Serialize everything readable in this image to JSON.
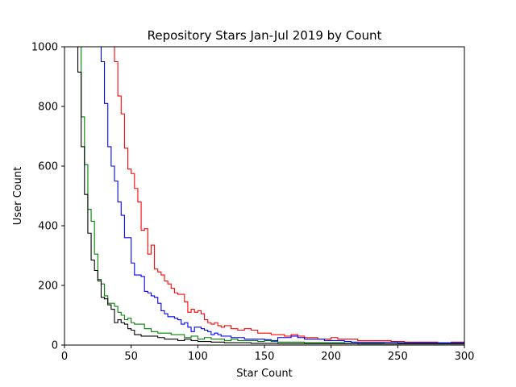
{
  "chart_data": {
    "type": "line",
    "title": "Repository Stars Jan-Jul 2019 by Count",
    "xlabel": "Star Count",
    "ylabel": "User Count",
    "xlim": [
      0,
      300
    ],
    "ylim": [
      0,
      1000
    ],
    "xticks": [
      0,
      50,
      100,
      150,
      200,
      250,
      300
    ],
    "yticks": [
      0,
      200,
      400,
      600,
      800,
      1000
    ],
    "grid": false,
    "legend": false,
    "step": "post",
    "series": [
      {
        "color": "#ff0000",
        "x": [
          35,
          37.5,
          40,
          42.5,
          45,
          47.5,
          50,
          52.5,
          55,
          57.5,
          60,
          62.5,
          65,
          67.5,
          70,
          72.5,
          75,
          77.5,
          80,
          82.5,
          85,
          87.5,
          90,
          92.5,
          95,
          97.5,
          100,
          102.5,
          105,
          107.5,
          110,
          112.5,
          115,
          117.5,
          120,
          122.5,
          125,
          130,
          135,
          140,
          145,
          150,
          155,
          160,
          165,
          170,
          175,
          180,
          185,
          190,
          195,
          200,
          205,
          210,
          215,
          220,
          225,
          230,
          235,
          240,
          245,
          250,
          255,
          260,
          265,
          270,
          275,
          280,
          285,
          290,
          295,
          300
        ],
        "y": [
          1000,
          950,
          835,
          775,
          660,
          590,
          575,
          525,
          480,
          385,
          390,
          305,
          335,
          255,
          245,
          235,
          215,
          205,
          190,
          175,
          170,
          170,
          145,
          110,
          120,
          110,
          115,
          105,
          85,
          75,
          70,
          75,
          65,
          60,
          65,
          65,
          55,
          50,
          55,
          50,
          40,
          40,
          35,
          35,
          30,
          35,
          30,
          25,
          25,
          20,
          20,
          25,
          20,
          20,
          20,
          15,
          15,
          15,
          15,
          15,
          12,
          12,
          10,
          10,
          10,
          10,
          10,
          8,
          8,
          10,
          10,
          10
        ]
      },
      {
        "color": "#0000ff",
        "x": [
          25,
          27.5,
          30,
          32.5,
          35,
          37.5,
          40,
          42.5,
          45,
          47.5,
          50,
          52.5,
          55,
          57.5,
          60,
          62.5,
          65,
          67.5,
          70,
          72.5,
          75,
          77.5,
          80,
          82.5,
          85,
          87.5,
          90,
          92.5,
          95,
          97.5,
          100,
          102.5,
          105,
          107.5,
          110,
          112.5,
          115,
          117.5,
          120,
          125,
          130,
          135,
          140,
          145,
          150,
          155,
          160,
          165,
          170,
          175,
          180,
          185,
          190,
          195,
          200,
          205,
          210,
          215,
          220,
          225,
          230,
          235,
          240,
          245,
          250,
          255,
          260,
          265,
          270,
          275,
          280,
          285,
          290,
          295,
          300
        ],
        "y": [
          1000,
          950,
          810,
          665,
          600,
          550,
          480,
          435,
          360,
          360,
          275,
          235,
          235,
          230,
          180,
          175,
          165,
          160,
          140,
          115,
          105,
          95,
          95,
          90,
          85,
          70,
          75,
          60,
          45,
          60,
          60,
          55,
          50,
          45,
          35,
          40,
          35,
          30,
          30,
          25,
          25,
          20,
          20,
          20,
          18,
          15,
          25,
          25,
          30,
          25,
          20,
          20,
          20,
          15,
          15,
          15,
          12,
          10,
          10,
          10,
          10,
          10,
          10,
          10,
          8,
          8,
          8,
          8,
          8,
          8,
          8,
          8,
          8,
          8,
          8
        ]
      },
      {
        "color": "#008000",
        "x": [
          10,
          12.5,
          15,
          17.5,
          20,
          22.5,
          25,
          27.5,
          30,
          32.5,
          35,
          37.5,
          40,
          42.5,
          45,
          47.5,
          50,
          52.5,
          55,
          60,
          65,
          70,
          75,
          80,
          85,
          90,
          95,
          100,
          105,
          110,
          115,
          120,
          125,
          130,
          135,
          140,
          145,
          150,
          155,
          160,
          165,
          170,
          175,
          180,
          185,
          190,
          195,
          200,
          210,
          220,
          230,
          240,
          250,
          260,
          270,
          280,
          290,
          300
        ],
        "y": [
          1000,
          765,
          605,
          455,
          415,
          305,
          220,
          205,
          165,
          140,
          140,
          130,
          110,
          100,
          85,
          90,
          75,
          70,
          70,
          55,
          45,
          40,
          40,
          35,
          35,
          25,
          30,
          20,
          25,
          20,
          20,
          15,
          20,
          15,
          15,
          15,
          12,
          15,
          12,
          10,
          10,
          10,
          10,
          8,
          8,
          8,
          8,
          8,
          6,
          6,
          6,
          5,
          5,
          5,
          5,
          5,
          5,
          5
        ]
      },
      {
        "color": "#000000",
        "x": [
          7.5,
          10,
          12.5,
          15,
          17.5,
          20,
          22.5,
          25,
          27.5,
          30,
          32.5,
          35,
          37.5,
          40,
          42.5,
          45,
          47.5,
          50,
          52.5,
          55,
          57.5,
          60,
          65,
          70,
          75,
          80,
          85,
          90,
          95,
          100,
          105,
          110,
          115,
          120,
          130,
          140,
          150,
          160,
          170,
          180,
          190,
          200,
          220,
          240,
          260,
          280,
          300
        ],
        "y": [
          1000,
          915,
          665,
          505,
          375,
          285,
          250,
          215,
          160,
          155,
          135,
          120,
          75,
          85,
          75,
          70,
          55,
          50,
          35,
          35,
          30,
          30,
          30,
          25,
          20,
          20,
          15,
          20,
          15,
          12,
          12,
          10,
          10,
          8,
          8,
          6,
          6,
          5,
          5,
          5,
          5,
          5,
          4,
          4,
          4,
          4,
          4
        ]
      }
    ]
  }
}
